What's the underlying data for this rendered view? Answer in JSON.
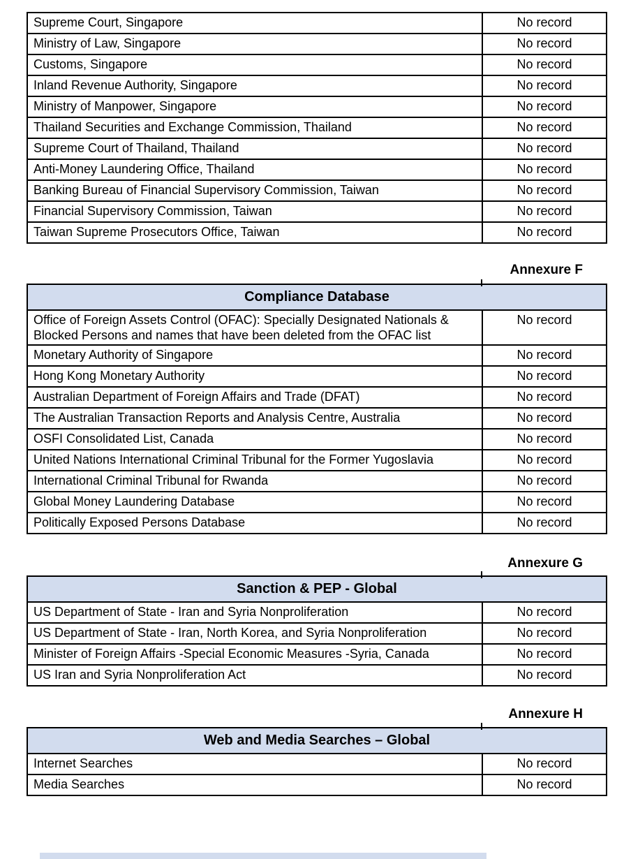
{
  "colors": {
    "header_band": "#d2dcee",
    "table_border": "#000000",
    "text": "#000000",
    "page_background": "#ffffff"
  },
  "annexures": {
    "f": "Annexure F",
    "g": "Annexure G",
    "h": "Annexure H"
  },
  "tables": [
    {
      "name": "court-and-regulatory-records-continued",
      "header": null,
      "rows": [
        {
          "source": "Supreme Court, Singapore",
          "result": "No record"
        },
        {
          "source": "Ministry of Law, Singapore",
          "result": "No record"
        },
        {
          "source": "Customs, Singapore",
          "result": "No record"
        },
        {
          "source": "Inland Revenue Authority, Singapore",
          "result": "No record"
        },
        {
          "source": "Ministry of Manpower, Singapore",
          "result": "No record"
        },
        {
          "source": "Thailand Securities and Exchange Commission, Thailand",
          "result": "No record"
        },
        {
          "source": "Supreme Court of Thailand, Thailand",
          "result": "No record"
        },
        {
          "source": "Anti-Money Laundering Office, Thailand",
          "result": "No record"
        },
        {
          "source": "Banking Bureau of Financial Supervisory Commission, Taiwan",
          "result": "No record"
        },
        {
          "source": "Financial Supervisory Commission, Taiwan",
          "result": "No record"
        },
        {
          "source": "Taiwan Supreme Prosecutors Office, Taiwan",
          "result": "No record"
        }
      ]
    },
    {
      "name": "compliance-database",
      "header": "Compliance Database",
      "rows": [
        {
          "source": "Office of Foreign Assets Control (OFAC): Specially Designated Nationals & Blocked Persons and names that have been deleted from the OFAC list",
          "result": "No record"
        },
        {
          "source": "Monetary Authority of Singapore",
          "result": "No record"
        },
        {
          "source": "Hong Kong Monetary Authority",
          "result": "No record"
        },
        {
          "source": "Australian Department of Foreign Affairs and Trade (DFAT)",
          "result": "No record"
        },
        {
          "source": "The Australian Transaction Reports and Analysis Centre, Australia",
          "result": "No record"
        },
        {
          "source": "OSFI Consolidated List, Canada",
          "result": "No record"
        },
        {
          "source": "United Nations International Criminal Tribunal for the Former Yugoslavia",
          "result": "No record"
        },
        {
          "source": "International Criminal Tribunal for Rwanda",
          "result": "No record"
        },
        {
          "source": "Global Money Laundering Database",
          "result": "No record"
        },
        {
          "source": "Politically Exposed Persons Database",
          "result": "No record"
        }
      ]
    },
    {
      "name": "sanction-and-pep-global",
      "header": "Sanction & PEP - Global",
      "rows": [
        {
          "source": "US Department of State - Iran and Syria Nonproliferation",
          "result": "No record"
        },
        {
          "source": "US Department of State - Iran, North Korea, and Syria Nonproliferation",
          "result": "No record"
        },
        {
          "source": "Minister of Foreign Affairs -Special Economic Measures -Syria, Canada",
          "result": "No record"
        },
        {
          "source": "US Iran and Syria Nonproliferation Act",
          "result": "No record"
        }
      ]
    },
    {
      "name": "web-and-media-searches-global",
      "header": "Web and Media Searches – Global",
      "rows": [
        {
          "source": "Internet Searches",
          "result": "No record"
        },
        {
          "source": "Media Searches",
          "result": "No record"
        }
      ]
    }
  ],
  "partial_next_table": {
    "note": "top sliver of next table header band visible at page bottom"
  }
}
